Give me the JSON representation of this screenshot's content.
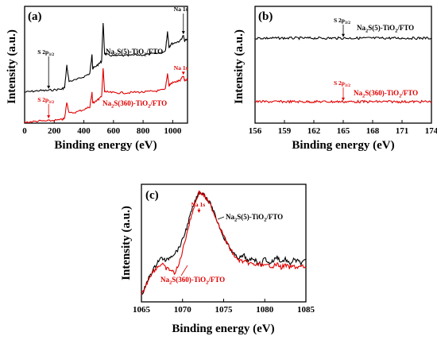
{
  "chart_data": [
    {
      "type": "line",
      "panel_label": "(a)",
      "xlabel": "Binding energy (eV)",
      "ylabel": "Intensity (a.u.)",
      "xlim": [
        0,
        1100
      ],
      "xticks": [
        0,
        200,
        400,
        600,
        800,
        1000
      ],
      "y_ticks_shown": false,
      "grid": false,
      "series": [
        {
          "name": "Na2S(5)-TiO2/FTO",
          "color": "#000000",
          "x": [
            0,
            50,
            100,
            150,
            200,
            250,
            270,
            285,
            300,
            350,
            400,
            440,
            455,
            460,
            470,
            500,
            520,
            530,
            540,
            560,
            600,
            650,
            700,
            750,
            800,
            850,
            900,
            950,
            965,
            975,
            990,
            1020,
            1050,
            1072,
            1080,
            1100
          ],
          "y": [
            10,
            11,
            12,
            12,
            13,
            14,
            16,
            44,
            24,
            26,
            30,
            34,
            58,
            40,
            42,
            46,
            50,
            100,
            60,
            58,
            57,
            57,
            57,
            58,
            58,
            59,
            60,
            62,
            88,
            68,
            72,
            74,
            76,
            83,
            76,
            78
          ]
        },
        {
          "name": "Na2S(360)-TiO2/FTO",
          "color": "#e00000",
          "x": [
            0,
            50,
            100,
            150,
            200,
            250,
            270,
            285,
            300,
            350,
            400,
            440,
            455,
            460,
            470,
            500,
            520,
            530,
            540,
            560,
            600,
            650,
            700,
            750,
            800,
            850,
            900,
            950,
            965,
            975,
            990,
            1020,
            1050,
            1072,
            1080,
            1100
          ],
          "y": [
            10,
            11,
            12,
            12,
            13,
            14,
            16,
            42,
            24,
            26,
            30,
            34,
            56,
            40,
            42,
            46,
            50,
            94,
            58,
            57,
            56,
            56,
            56,
            57,
            57,
            58,
            59,
            61,
            86,
            67,
            71,
            73,
            75,
            82,
            75,
            77
          ]
        }
      ],
      "annotations": [
        {
          "text": "Na 1s",
          "series": 0
        },
        {
          "text": "S 2p",
          "sub": "3/2",
          "series": 0
        },
        {
          "text": "Na 1s",
          "series": 1
        },
        {
          "text": "S 2p",
          "sub": "3/2",
          "series": 1
        }
      ],
      "legend_labels": [
        {
          "parts": [
            "Na",
            "2",
            "S(5)-TiO",
            "2",
            "/FTO"
          ],
          "color": "#000000"
        },
        {
          "parts": [
            "Na",
            "2",
            "S(360)-TiO",
            "2",
            "/FTO"
          ],
          "color": "#e00000"
        }
      ]
    },
    {
      "type": "line",
      "panel_label": "(b)",
      "xlabel": "Binding energy (eV)",
      "ylabel": "Intensity (a.u.)",
      "xlim": [
        156,
        174
      ],
      "xticks": [
        156,
        159,
        162,
        165,
        168,
        171,
        174
      ],
      "y_ticks_shown": false,
      "grid": false,
      "series": [
        {
          "name": "Na2S(5)-TiO2/FTO",
          "color": "#000000",
          "baseline": 100
        },
        {
          "name": "Na2S(360)-TiO2/FTO",
          "color": "#e00000",
          "baseline": 30
        }
      ],
      "annotations": [
        {
          "text": "S 2p",
          "sub": "3/2",
          "series": 0
        },
        {
          "text": "S 2p",
          "sub": "3/2",
          "series": 1
        }
      ],
      "legend_labels": [
        {
          "parts": [
            "Na",
            "2",
            "S(5)-TiO",
            "2",
            "/FTO"
          ],
          "color": "#000000"
        },
        {
          "parts": [
            "Na",
            "2",
            "S(360)-TiO",
            "2",
            "/FTO"
          ],
          "color": "#e00000"
        }
      ]
    },
    {
      "type": "line",
      "panel_label": "(c)",
      "xlabel": "Binding energy (eV)",
      "ylabel": "Intensity (a.u.)",
      "xlim": [
        1065,
        1085
      ],
      "xticks": [
        1065,
        1070,
        1075,
        1080,
        1085
      ],
      "y_ticks_shown": false,
      "grid": false,
      "series": [
        {
          "name": "Na2S(5)-TiO2/FTO",
          "color": "#000000",
          "x": [
            1065,
            1065.5,
            1066,
            1066.5,
            1067,
            1067.5,
            1068,
            1068.5,
            1069,
            1069.5,
            1070,
            1070.5,
            1071,
            1071.5,
            1072,
            1072.5,
            1073,
            1073.5,
            1074,
            1074.5,
            1075,
            1075.5,
            1076,
            1076.5,
            1077,
            1077.5,
            1078,
            1078.5,
            1079,
            1079.5,
            1080,
            1080.5,
            1081,
            1081.5,
            1082,
            1082.5,
            1083,
            1083.5,
            1084,
            1084.5,
            1085
          ],
          "y": [
            2,
            10,
            20,
            26,
            33,
            36,
            33,
            37,
            40,
            44,
            52,
            63,
            76,
            86,
            95,
            94,
            89,
            83,
            73,
            64,
            55,
            48,
            42,
            37,
            36,
            38,
            32,
            36,
            33,
            30,
            36,
            31,
            33,
            37,
            32,
            35,
            30,
            34,
            33,
            31,
            34
          ]
        },
        {
          "name": "Na2S(360)-TiO2/FTO",
          "color": "#e00000",
          "x": [
            1065,
            1065.5,
            1066,
            1066.5,
            1067,
            1067.5,
            1068,
            1068.5,
            1069,
            1069.5,
            1070,
            1070.5,
            1071,
            1071.5,
            1072,
            1072.5,
            1073,
            1073.5,
            1074,
            1074.5,
            1075,
            1075.5,
            1076,
            1076.5,
            1077,
            1077.5,
            1078,
            1078.5,
            1079,
            1079.5,
            1080,
            1080.5,
            1081,
            1081.5,
            1082,
            1082.5,
            1083,
            1083.5,
            1084,
            1084.5,
            1085
          ],
          "y": [
            5,
            13,
            22,
            27,
            31,
            33,
            29,
            28,
            25,
            31,
            45,
            60,
            74,
            87,
            97,
            95,
            90,
            84,
            75,
            67,
            58,
            50,
            44,
            38,
            36,
            35,
            34,
            33,
            32,
            33,
            31,
            32,
            31,
            33,
            30,
            32,
            30,
            31,
            30,
            31,
            30
          ]
        }
      ],
      "annotations": [
        {
          "text": "Na 1s",
          "series": 1
        }
      ],
      "legend_labels": [
        {
          "parts": [
            "Na",
            "2",
            "S(5)-TiO",
            "2",
            "/FTO"
          ],
          "color": "#000000"
        },
        {
          "parts": [
            "Na",
            "2",
            "S(360)-TiO",
            "2",
            "/FTO"
          ],
          "color": "#e00000"
        }
      ]
    }
  ]
}
